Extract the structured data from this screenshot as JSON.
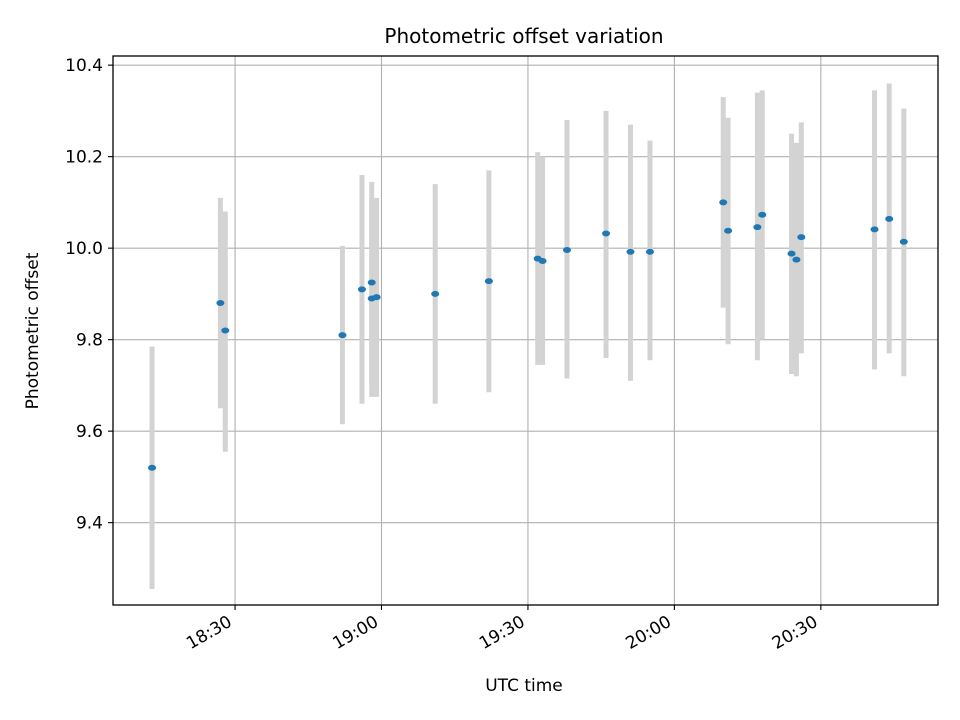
{
  "chart_data": {
    "type": "scatter",
    "title": "Photometric offset variation",
    "xlabel": "UTC time",
    "ylabel": "Photometric offset",
    "x_axis_kind": "time",
    "xlim": [
      "18:05",
      "20:54"
    ],
    "ylim": [
      9.22,
      10.42
    ],
    "grid": true,
    "x_ticks": [
      "18:30",
      "19:00",
      "19:30",
      "20:00",
      "20:30"
    ],
    "y_ticks": [
      9.4,
      9.6,
      9.8,
      10.0,
      10.2,
      10.4
    ],
    "y_tick_labels": [
      "9.4",
      "9.6",
      "9.8",
      "10.0",
      "10.2",
      "10.4"
    ],
    "marker_color": "#1f77b4",
    "errorbar_color": "#d3d3d3",
    "points": [
      {
        "x": "18:13",
        "y": 9.52,
        "err_low": 9.255,
        "err_high": 9.785
      },
      {
        "x": "18:27",
        "y": 9.88,
        "err_low": 9.65,
        "err_high": 10.11
      },
      {
        "x": "18:28",
        "y": 9.82,
        "err_low": 9.555,
        "err_high": 10.08
      },
      {
        "x": "18:52",
        "y": 9.81,
        "err_low": 9.615,
        "err_high": 10.005
      },
      {
        "x": "18:56",
        "y": 9.91,
        "err_low": 9.66,
        "err_high": 10.16
      },
      {
        "x": "18:58",
        "y": 9.89,
        "err_low": 9.675,
        "err_high": 10.11
      },
      {
        "x": "18:58",
        "y": 9.925,
        "err_low": 9.705,
        "err_high": 10.145
      },
      {
        "x": "18:59",
        "y": 9.893,
        "err_low": 9.675,
        "err_high": 10.11
      },
      {
        "x": "19:11",
        "y": 9.9,
        "err_low": 9.66,
        "err_high": 10.14
      },
      {
        "x": "19:22",
        "y": 9.928,
        "err_low": 9.685,
        "err_high": 10.17
      },
      {
        "x": "19:32",
        "y": 9.977,
        "err_low": 9.745,
        "err_high": 10.21
      },
      {
        "x": "19:33",
        "y": 9.972,
        "err_low": 9.745,
        "err_high": 10.2
      },
      {
        "x": "19:38",
        "y": 9.996,
        "err_low": 9.715,
        "err_high": 10.28
      },
      {
        "x": "19:46",
        "y": 10.032,
        "err_low": 9.76,
        "err_high": 10.3
      },
      {
        "x": "19:51",
        "y": 9.992,
        "err_low": 9.71,
        "err_high": 10.27
      },
      {
        "x": "19:55",
        "y": 9.992,
        "err_low": 9.755,
        "err_high": 10.235
      },
      {
        "x": "20:10",
        "y": 10.1,
        "err_low": 9.87,
        "err_high": 10.33
      },
      {
        "x": "20:11",
        "y": 10.038,
        "err_low": 9.79,
        "err_high": 10.285
      },
      {
        "x": "20:17",
        "y": 10.046,
        "err_low": 9.755,
        "err_high": 10.34
      },
      {
        "x": "20:18",
        "y": 10.073,
        "err_low": 9.8,
        "err_high": 10.345
      },
      {
        "x": "20:24",
        "y": 9.988,
        "err_low": 9.725,
        "err_high": 10.25
      },
      {
        "x": "20:25",
        "y": 9.975,
        "err_low": 9.72,
        "err_high": 10.23
      },
      {
        "x": "20:26",
        "y": 10.024,
        "err_low": 9.77,
        "err_high": 10.275
      },
      {
        "x": "20:41",
        "y": 10.041,
        "err_low": 9.735,
        "err_high": 10.345
      },
      {
        "x": "20:44",
        "y": 10.064,
        "err_low": 9.77,
        "err_high": 10.36
      },
      {
        "x": "20:47",
        "y": 10.014,
        "err_low": 9.72,
        "err_high": 10.305
      }
    ]
  }
}
